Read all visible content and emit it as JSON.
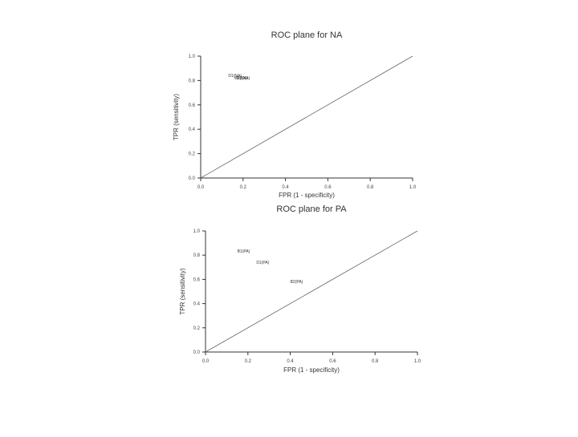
{
  "chart_data": [
    {
      "type": "scatter",
      "title": "ROC plane for NA",
      "xlabel": "FPR (1 - specificity)",
      "ylabel": "TPR (sensitivity)",
      "xlim": [
        0.0,
        1.0
      ],
      "ylim": [
        0.0,
        1.0
      ],
      "x_ticks": [
        "0.0",
        "0.2",
        "0.4",
        "0.6",
        "0.8",
        "1.0"
      ],
      "y_ticks": [
        "0.0",
        "0.2",
        "0.4",
        "0.6",
        "0.8",
        "1.0"
      ],
      "grid": false,
      "reference_line": "diagonal",
      "points": [
        {
          "label": "D1(NA)",
          "x": 0.13,
          "y": 0.83
        },
        {
          "label": "B2(NA)",
          "x": 0.16,
          "y": 0.81
        },
        {
          "label": "B1(NA)",
          "x": 0.17,
          "y": 0.81
        }
      ]
    },
    {
      "type": "scatter",
      "title": "ROC plane for PA",
      "xlabel": "FPR (1 - specificity)",
      "ylabel": "TPR (sensitivity)",
      "xlim": [
        0.0,
        1.0
      ],
      "ylim": [
        0.0,
        1.0
      ],
      "x_ticks": [
        "0.0",
        "0.2",
        "0.4",
        "0.6",
        "0.8",
        "1.0"
      ],
      "y_ticks": [
        "0.0",
        "0.2",
        "0.4",
        "0.6",
        "0.8",
        "1.0"
      ],
      "grid": false,
      "reference_line": "diagonal",
      "points": [
        {
          "label": "B1(PA)",
          "x": 0.15,
          "y": 0.82
        },
        {
          "label": "D1(PA)",
          "x": 0.24,
          "y": 0.73
        },
        {
          "label": "B2(PA)",
          "x": 0.4,
          "y": 0.57
        }
      ]
    }
  ]
}
